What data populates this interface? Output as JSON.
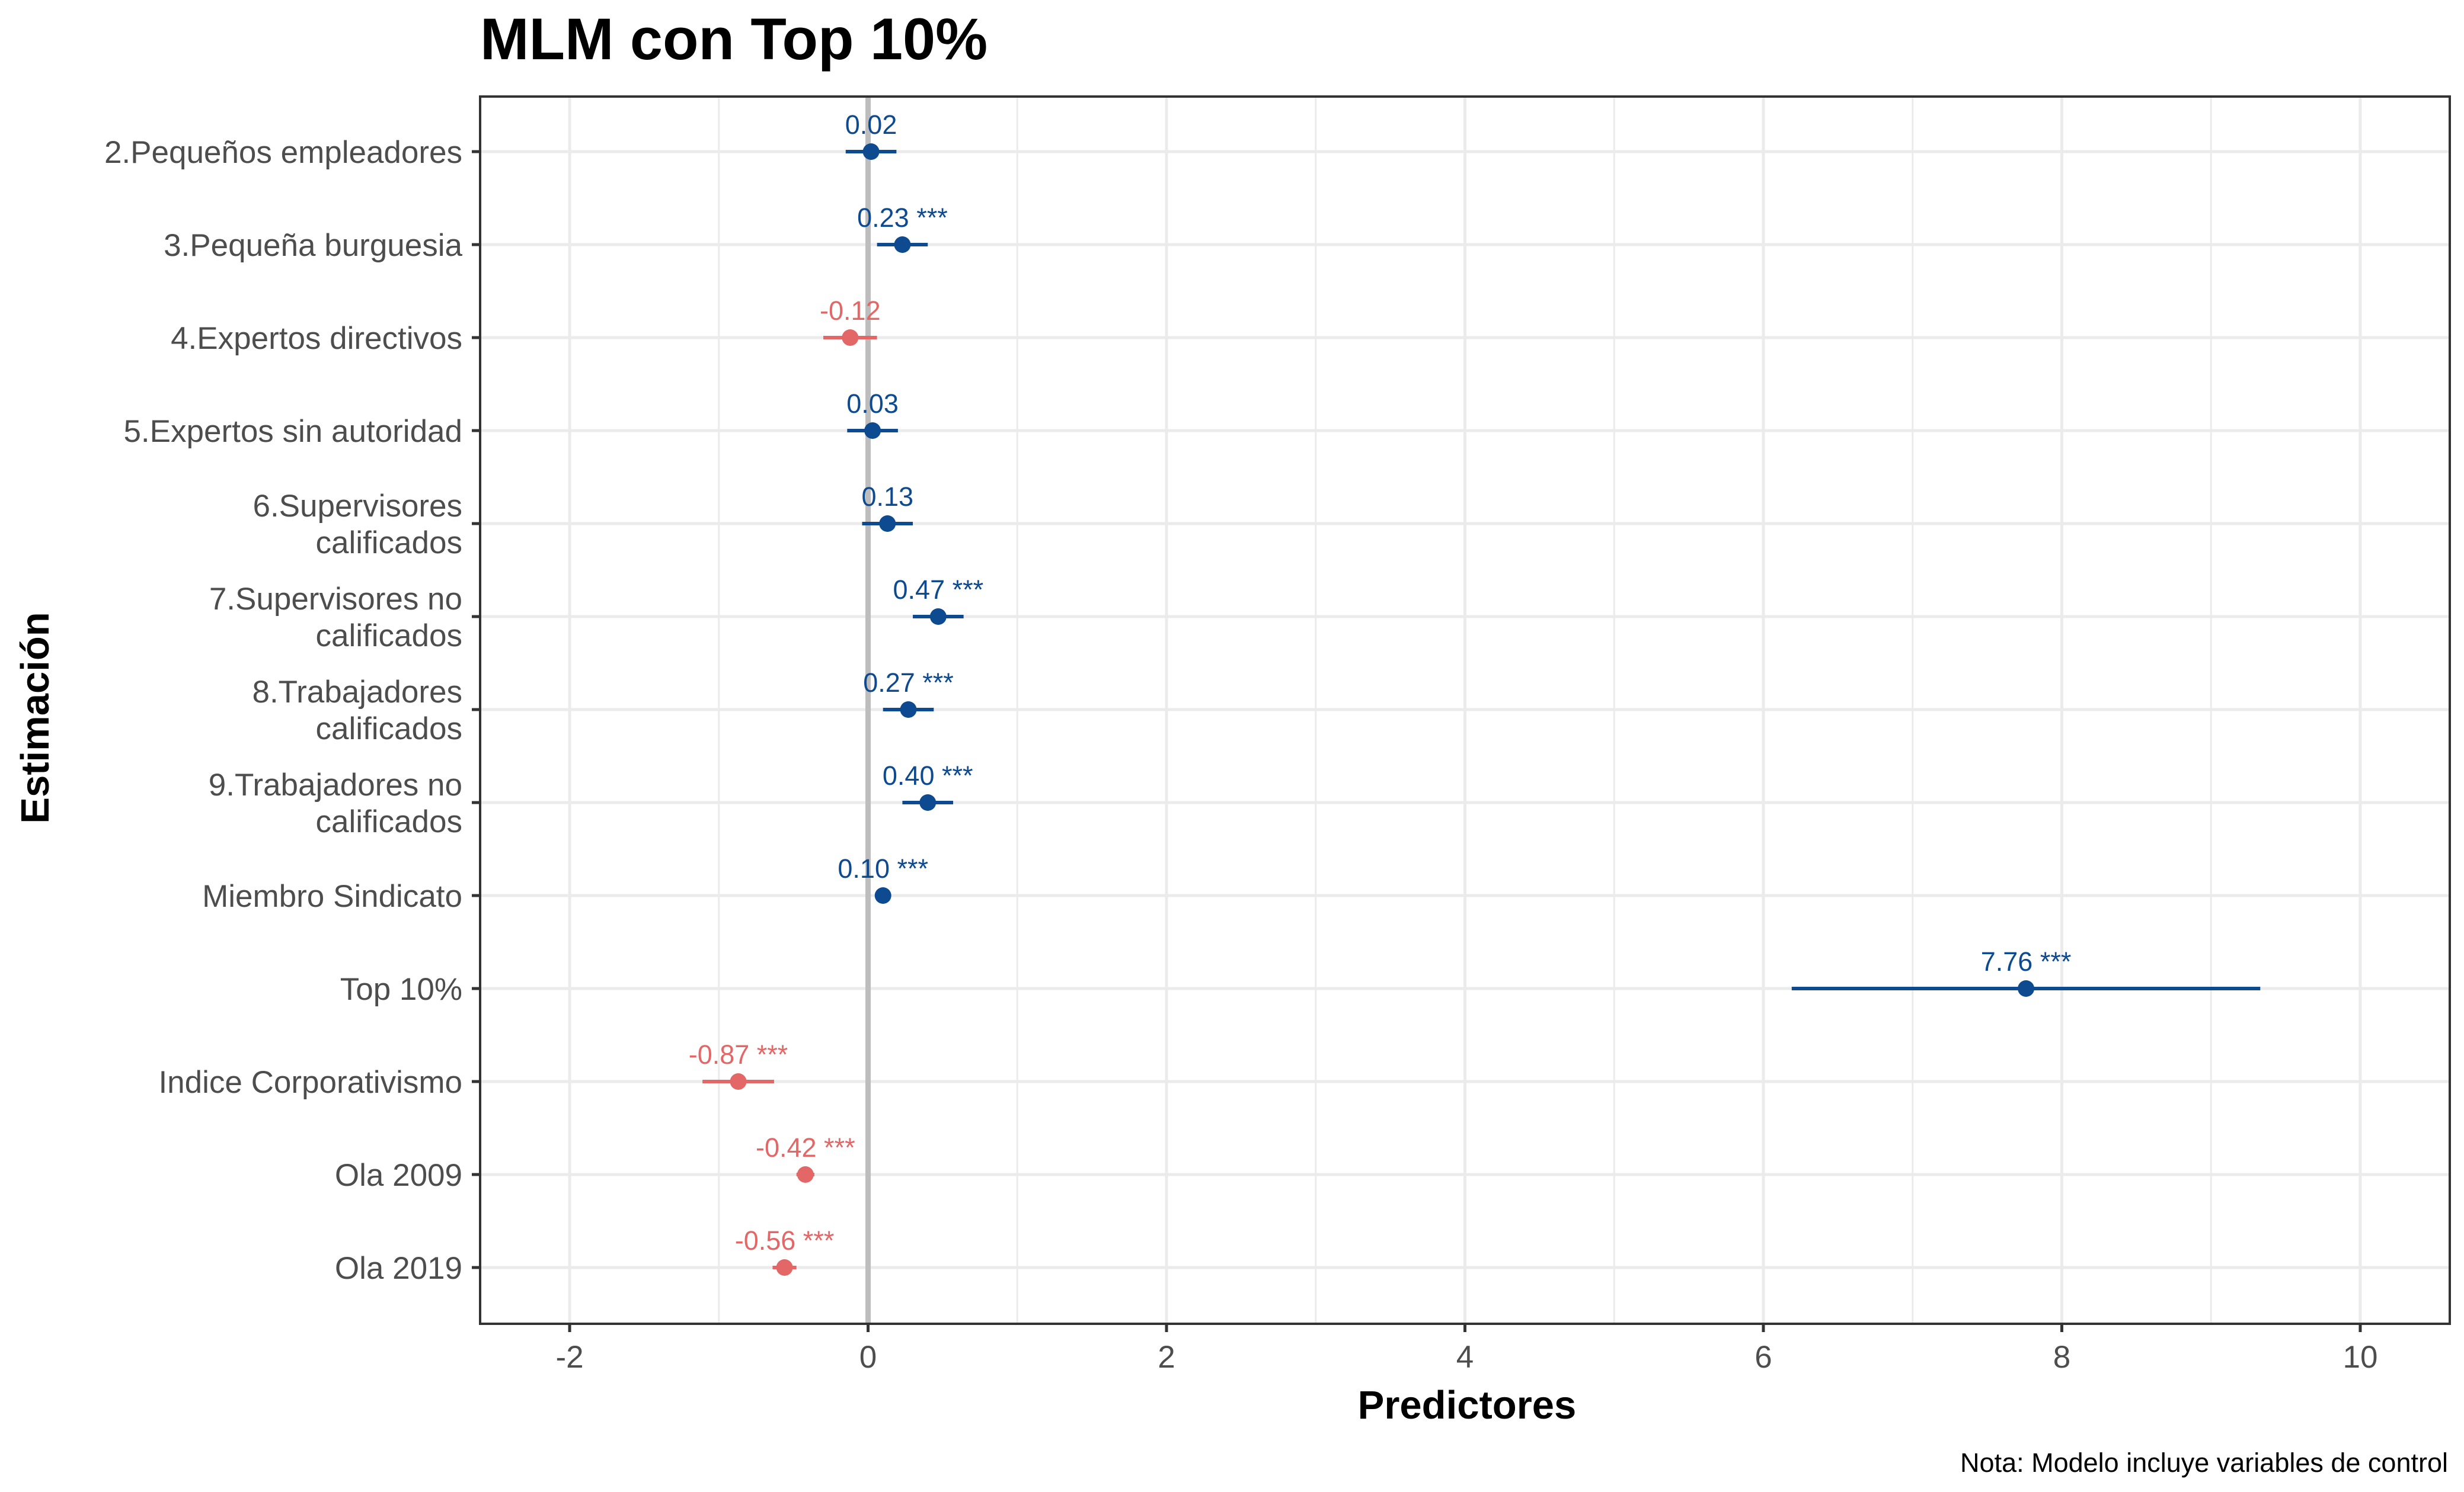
{
  "chart_data": {
    "type": "scatter",
    "title": "MLM con Top 10%",
    "xlabel": "Predictores",
    "ylabel": "Estimación",
    "caption": "Nota: Modelo incluye variables de control",
    "xlim": [
      -2.6,
      10.6
    ],
    "x_ticks": [
      -2,
      0,
      2,
      4,
      6,
      8,
      10
    ],
    "x_tick_labels": [
      "-2",
      "0",
      "2",
      "4",
      "6",
      "8",
      "10"
    ],
    "reference_line": 0,
    "grid": true,
    "legend": "none",
    "colors": {
      "positive": "#0d4a8f",
      "negative": "#e46767",
      "reference": "#bdbdbd",
      "grid": "#ebebeb",
      "frame": "#333333"
    },
    "points": [
      {
        "label": [
          "2.Pequeños empleadores"
        ],
        "estimate": 0.02,
        "low": -0.15,
        "high": 0.19,
        "text": "0.02"
      },
      {
        "label": [
          "3.Pequeña burguesia"
        ],
        "estimate": 0.23,
        "low": 0.06,
        "high": 0.4,
        "text": "0.23 ***"
      },
      {
        "label": [
          "4.Expertos directivos"
        ],
        "estimate": -0.12,
        "low": -0.3,
        "high": 0.06,
        "text": "-0.12"
      },
      {
        "label": [
          "5.Expertos sin autoridad"
        ],
        "estimate": 0.03,
        "low": -0.14,
        "high": 0.2,
        "text": "0.03"
      },
      {
        "label": [
          "6.Supervisores",
          "calificados"
        ],
        "estimate": 0.13,
        "low": -0.04,
        "high": 0.3,
        "text": "0.13"
      },
      {
        "label": [
          "7.Supervisores no",
          "calificados"
        ],
        "estimate": 0.47,
        "low": 0.3,
        "high": 0.64,
        "text": "0.47 ***"
      },
      {
        "label": [
          "8.Trabajadores",
          "calificados"
        ],
        "estimate": 0.27,
        "low": 0.1,
        "high": 0.44,
        "text": "0.27 ***"
      },
      {
        "label": [
          "9.Trabajadores no",
          "calificados"
        ],
        "estimate": 0.4,
        "low": 0.23,
        "high": 0.57,
        "text": "0.40 ***"
      },
      {
        "label": [
          "Miembro Sindicato"
        ],
        "estimate": 0.1,
        "low": 0.07,
        "high": 0.13,
        "text": "0.10 ***"
      },
      {
        "label": [
          "Top 10%"
        ],
        "estimate": 7.76,
        "low": 6.19,
        "high": 9.33,
        "text": "7.76 ***"
      },
      {
        "label": [
          "Indice Corporativismo"
        ],
        "estimate": -0.87,
        "low": -1.11,
        "high": -0.63,
        "text": "-0.87 ***"
      },
      {
        "label": [
          "Ola 2009"
        ],
        "estimate": -0.42,
        "low": -0.48,
        "high": -0.36,
        "text": "-0.42 ***"
      },
      {
        "label": [
          "Ola 2019"
        ],
        "estimate": -0.56,
        "low": -0.64,
        "high": -0.48,
        "text": "-0.56 ***"
      }
    ]
  }
}
